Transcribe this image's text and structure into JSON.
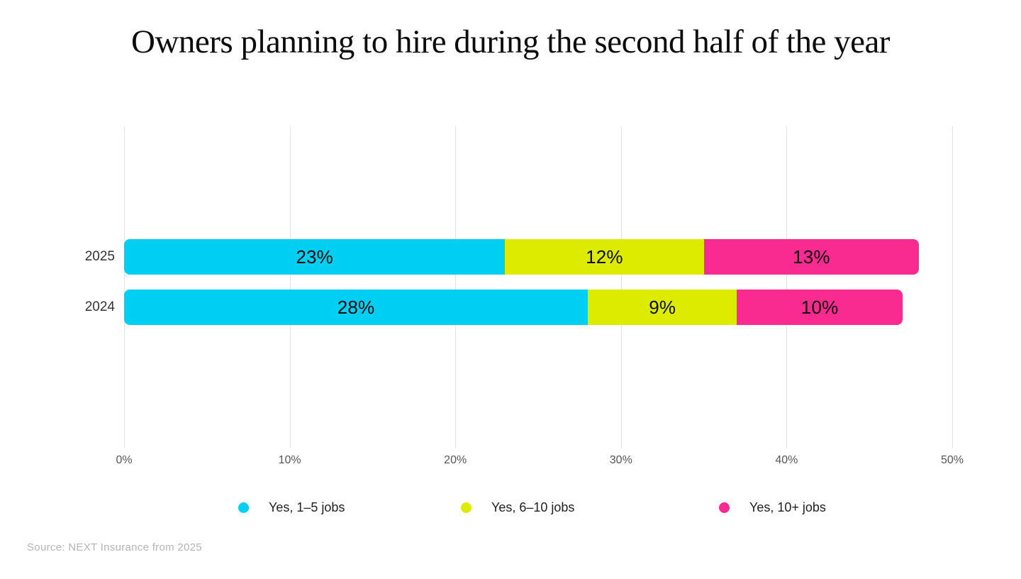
{
  "title": "Owners planning to hire during the second half of the year",
  "source": "Source: NEXT Insurance from 2025",
  "chart_data": {
    "type": "bar",
    "orientation": "horizontal",
    "stacked": true,
    "title": "Owners planning to hire during the second half of the year",
    "categories": [
      "2025",
      "2024"
    ],
    "series": [
      {
        "name": "Yes, 1–5 jobs",
        "color": "#00cef2",
        "values": [
          23,
          28
        ]
      },
      {
        "name": "Yes, 6–10 jobs",
        "color": "#ddeb00",
        "values": [
          12,
          9
        ]
      },
      {
        "name": "Yes, 10+ jobs",
        "color": "#fa2b90",
        "values": [
          13,
          10
        ]
      }
    ],
    "value_label_format": "{v}%",
    "xlabel": "",
    "ylabel": "",
    "xlim": [
      0,
      50
    ],
    "x_ticks": [
      "0%",
      "10%",
      "20%",
      "30%",
      "40%",
      "50%"
    ],
    "grid": true,
    "gridline_color": "#e3e3e3",
    "legend_position": "bottom"
  }
}
